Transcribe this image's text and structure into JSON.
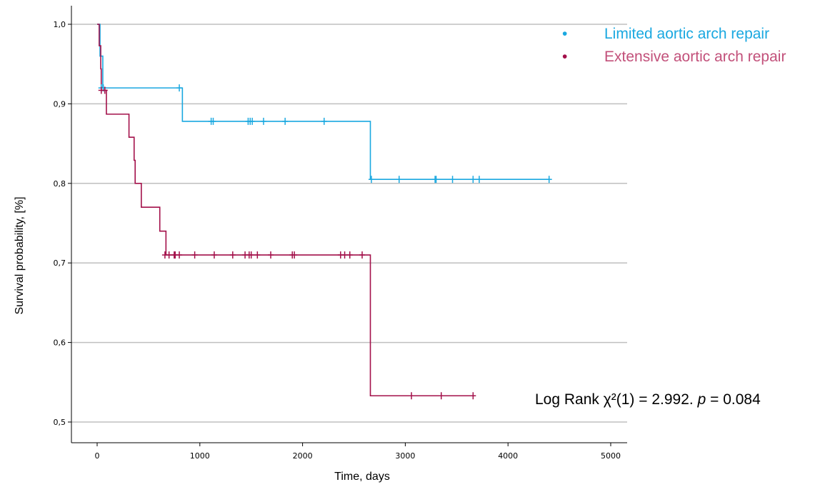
{
  "chart_data": {
    "type": "line",
    "subtype": "kaplan-meier step curve with censor marks",
    "xlabel": "Time, days",
    "ylabel": "Survival probability, [%]",
    "xlim": [
      -120,
      5000
    ],
    "ylim": [
      0.48,
      1.02
    ],
    "x_ticks": [
      0,
      1000,
      2000,
      3000,
      4000,
      5000
    ],
    "x_tick_labels": [
      "0",
      "1000",
      "2000",
      "3000",
      "4000",
      "5000"
    ],
    "y_ticks": [
      0.5,
      0.6,
      0.7,
      0.8,
      0.9,
      1.0
    ],
    "y_tick_labels": [
      "0,5",
      "0,6",
      "0,7",
      "0,8",
      "0,9",
      "1,0"
    ],
    "grid": "horizontal",
    "legend_position": "top-right",
    "annotation": {
      "prefix": "Log Rank χ²(1) = 2.992.",
      "p_symbol": "p",
      "suffix": " = 0.084"
    },
    "series": [
      {
        "name": "Limited aortic arch repair",
        "color": "#1aa8e0",
        "steps": [
          [
            0,
            1.0
          ],
          [
            28,
            0.96
          ],
          [
            55,
            0.92
          ],
          [
            830,
            0.878
          ],
          [
            2660,
            0.805
          ],
          [
            4400,
            0.805
          ]
        ],
        "censored": [
          [
            40,
            0.92
          ],
          [
            60,
            0.92
          ],
          [
            800,
            0.92
          ],
          [
            1110,
            0.878
          ],
          [
            1130,
            0.878
          ],
          [
            1470,
            0.878
          ],
          [
            1490,
            0.878
          ],
          [
            1510,
            0.878
          ],
          [
            1620,
            0.878
          ],
          [
            1830,
            0.878
          ],
          [
            2210,
            0.878
          ],
          [
            2670,
            0.805
          ],
          [
            2940,
            0.805
          ],
          [
            3290,
            0.805
          ],
          [
            3300,
            0.805
          ],
          [
            3460,
            0.805
          ],
          [
            3660,
            0.805
          ],
          [
            3720,
            0.805
          ],
          [
            4400,
            0.805
          ]
        ]
      },
      {
        "name": "Extensive aortic arch repair",
        "color": "#a3104a",
        "steps": [
          [
            0,
            1.0
          ],
          [
            20,
            0.973
          ],
          [
            35,
            0.944
          ],
          [
            40,
            0.917
          ],
          [
            90,
            0.887
          ],
          [
            310,
            0.858
          ],
          [
            360,
            0.829
          ],
          [
            370,
            0.8
          ],
          [
            430,
            0.77
          ],
          [
            610,
            0.74
          ],
          [
            670,
            0.71
          ],
          [
            2660,
            0.533
          ],
          [
            3660,
            0.533
          ]
        ],
        "censored": [
          [
            40,
            0.917
          ],
          [
            75,
            0.917
          ],
          [
            660,
            0.71
          ],
          [
            700,
            0.71
          ],
          [
            750,
            0.71
          ],
          [
            760,
            0.71
          ],
          [
            800,
            0.71
          ],
          [
            950,
            0.71
          ],
          [
            1140,
            0.71
          ],
          [
            1320,
            0.71
          ],
          [
            1440,
            0.71
          ],
          [
            1480,
            0.71
          ],
          [
            1500,
            0.71
          ],
          [
            1560,
            0.71
          ],
          [
            1690,
            0.71
          ],
          [
            1900,
            0.71
          ],
          [
            1920,
            0.71
          ],
          [
            2370,
            0.71
          ],
          [
            2410,
            0.71
          ],
          [
            2460,
            0.71
          ],
          [
            2580,
            0.71
          ],
          [
            3060,
            0.533
          ],
          [
            3350,
            0.533
          ],
          [
            3660,
            0.533
          ]
        ]
      }
    ]
  }
}
